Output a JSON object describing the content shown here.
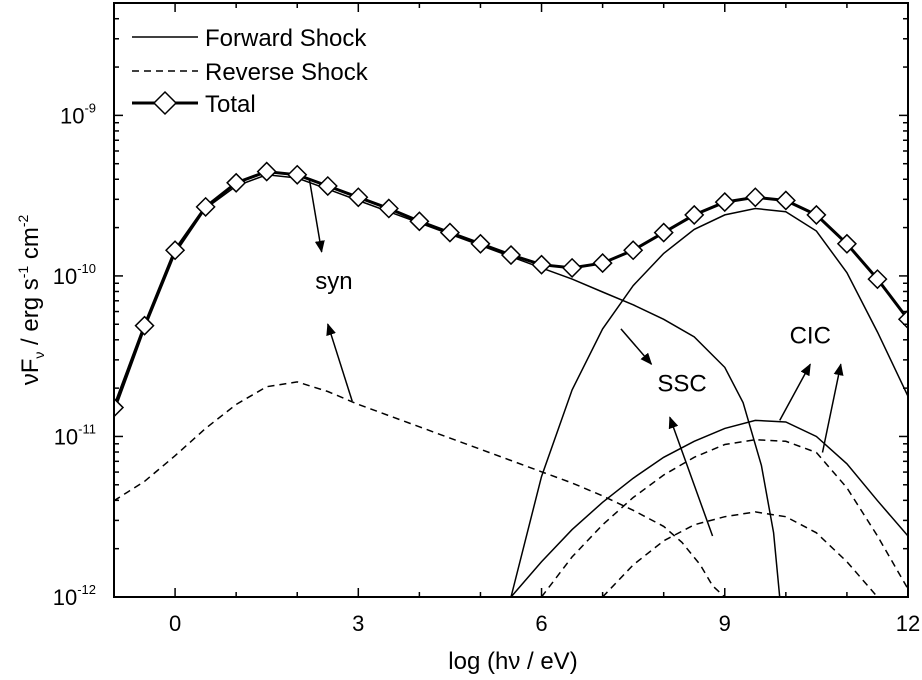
{
  "chart_data": {
    "type": "line",
    "xlabel": "log (hν / eV)",
    "ylabel": {
      "base": "νF",
      "sub": "ν",
      "mid1": " / erg s",
      "sup1": "-1",
      "mid2": " cm",
      "sup2": "-2"
    },
    "x_scale": "linear",
    "y_scale": "log10",
    "xlim": [
      -1,
      12
    ],
    "ylim_log10": [
      -12,
      -8.3
    ],
    "x_ticks": [
      0,
      3,
      6,
      9,
      12
    ],
    "x_tick_labels": [
      "0",
      "3",
      "6",
      "9",
      "12"
    ],
    "y_ticks": [
      {
        "exp": -12,
        "base": "10",
        "sup": "-12"
      },
      {
        "exp": -11,
        "base": "10",
        "sup": "-11"
      },
      {
        "exp": -10,
        "base": "10",
        "sup": "-10"
      },
      {
        "exp": -9,
        "base": "10",
        "sup": "-9"
      }
    ],
    "legend": {
      "position": "top-left",
      "entries": [
        {
          "label": "Forward Shock",
          "style": "solid"
        },
        {
          "label": "Reverse Shock",
          "style": "dashed"
        },
        {
          "label": "Total",
          "style": "thick-diamond"
        }
      ]
    },
    "series": [
      {
        "name": "Forward Shock syn",
        "style": "solid",
        "x": [
          -1,
          -0.5,
          0,
          0.5,
          1,
          1.5,
          2,
          2.5,
          3,
          3.5,
          4,
          4.5,
          5,
          5.5,
          6,
          6.5,
          7,
          7.5,
          8,
          8.5,
          9,
          9.3,
          9.6,
          9.8,
          9.9
        ],
        "log_y": [
          -10.85,
          -10.33,
          -9.86,
          -9.58,
          -9.44,
          -9.37,
          -9.39,
          -9.46,
          -9.53,
          -9.6,
          -9.67,
          -9.74,
          -9.81,
          -9.88,
          -9.95,
          -10.02,
          -10.1,
          -10.18,
          -10.27,
          -10.38,
          -10.57,
          -10.79,
          -11.18,
          -11.6,
          -12.0
        ]
      },
      {
        "name": "Forward Shock SSC",
        "style": "solid",
        "x": [
          5.5,
          6,
          6.5,
          7,
          7.5,
          8,
          8.5,
          9,
          9.5,
          10,
          10.5,
          11,
          11.5,
          12
        ],
        "log_y": [
          -12.0,
          -11.25,
          -10.71,
          -10.33,
          -10.06,
          -9.86,
          -9.71,
          -9.62,
          -9.58,
          -9.6,
          -9.72,
          -9.98,
          -10.35,
          -10.75
        ]
      },
      {
        "name": "Forward Shock CIC",
        "style": "solid",
        "x": [
          5.5,
          6,
          6.5,
          7,
          7.5,
          8,
          8.5,
          9,
          9.5,
          10,
          10.5,
          11,
          11.5,
          12
        ],
        "log_y": [
          -12.0,
          -11.78,
          -11.58,
          -11.41,
          -11.26,
          -11.13,
          -11.03,
          -10.95,
          -10.9,
          -10.91,
          -11.0,
          -11.17,
          -11.4,
          -11.62
        ]
      },
      {
        "name": "Reverse Shock syn",
        "style": "dashed",
        "x": [
          -1,
          -0.5,
          0,
          0.5,
          1,
          1.5,
          2,
          2.5,
          3,
          3.5,
          4,
          4.5,
          5,
          5.5,
          6,
          6.5,
          7,
          7.5,
          8,
          8.3,
          8.6,
          8.8,
          9.0
        ],
        "log_y": [
          -11.4,
          -11.28,
          -11.12,
          -10.95,
          -10.8,
          -10.69,
          -10.66,
          -10.72,
          -10.8,
          -10.87,
          -10.94,
          -11.01,
          -11.08,
          -11.15,
          -11.22,
          -11.29,
          -11.37,
          -11.46,
          -11.56,
          -11.66,
          -11.8,
          -11.93,
          -12.0
        ]
      },
      {
        "name": "Reverse Shock CIC",
        "style": "dashed",
        "x": [
          6,
          6.5,
          7,
          7.5,
          8,
          8.5,
          9,
          9.5,
          10,
          10.5,
          11,
          11.5,
          12
        ],
        "log_y": [
          -12.0,
          -11.75,
          -11.55,
          -11.38,
          -11.24,
          -11.13,
          -11.05,
          -11.02,
          -11.03,
          -11.1,
          -11.32,
          -11.62,
          -11.95
        ]
      },
      {
        "name": "Reverse Shock SSC",
        "style": "dashed",
        "x": [
          7,
          7.5,
          8,
          8.5,
          9,
          9.5,
          10,
          10.5,
          11,
          11.5
        ],
        "log_y": [
          -12.0,
          -11.8,
          -11.65,
          -11.55,
          -11.5,
          -11.47,
          -11.5,
          -11.6,
          -11.78,
          -12.0
        ]
      },
      {
        "name": "Total",
        "style": "thick-diamond",
        "x": [
          -1,
          -0.5,
          0,
          0.5,
          1,
          1.5,
          2,
          2.5,
          3,
          3.5,
          4,
          4.5,
          5,
          5.5,
          6,
          6.5,
          7,
          7.5,
          8,
          8.5,
          9,
          9.5,
          10,
          10.5,
          11,
          11.5,
          12
        ],
        "log_y": [
          -10.82,
          -10.31,
          -9.84,
          -9.57,
          -9.42,
          -9.35,
          -9.37,
          -9.44,
          -9.51,
          -9.58,
          -9.66,
          -9.73,
          -9.8,
          -9.87,
          -9.93,
          -9.95,
          -9.92,
          -9.84,
          -9.73,
          -9.62,
          -9.54,
          -9.51,
          -9.53,
          -9.62,
          -9.8,
          -10.02,
          -10.27
        ]
      }
    ],
    "annotations": [
      {
        "text": "syn",
        "x": 2.6,
        "log_y": -10.08
      },
      {
        "text": "SSC",
        "x": 8.3,
        "log_y": -10.72
      },
      {
        "text": "CIC",
        "x": 10.4,
        "log_y": -10.42
      }
    ],
    "arrows": [
      {
        "from": [
          2.2,
          -9.4
        ],
        "to": [
          2.4,
          -9.85
        ]
      },
      {
        "from": [
          2.9,
          -10.78
        ],
        "to": [
          2.5,
          -10.3
        ]
      },
      {
        "from": [
          7.3,
          -10.33
        ],
        "to": [
          7.8,
          -10.55
        ]
      },
      {
        "from": [
          8.8,
          -11.62
        ],
        "to": [
          8.1,
          -10.88
        ]
      },
      {
        "from": [
          9.9,
          -10.9
        ],
        "to": [
          10.4,
          -10.55
        ]
      },
      {
        "from": [
          10.6,
          -11.1
        ],
        "to": [
          10.9,
          -10.55
        ]
      }
    ]
  }
}
